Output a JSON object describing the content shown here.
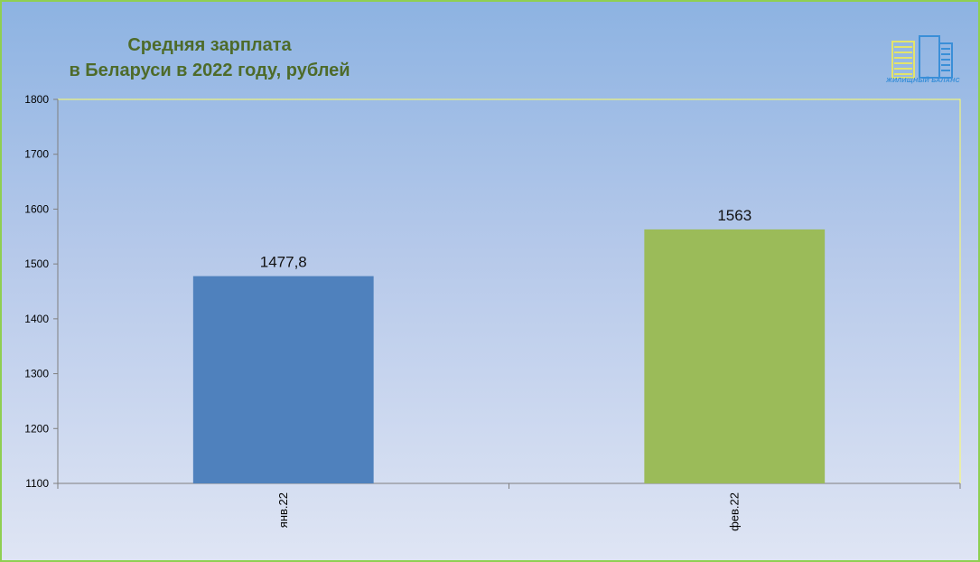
{
  "chart_data": {
    "type": "bar",
    "title_lines": [
      "Средняя зарплата",
      "в Беларуси в 2022 году, рублей"
    ],
    "categories": [
      "янв.22",
      "фев.22"
    ],
    "values": [
      1477.8,
      1563
    ],
    "data_labels": [
      "1477,8",
      "1563"
    ],
    "bar_colors": [
      "#4f81bd",
      "#9bbb59"
    ],
    "ylim": [
      1100,
      1800
    ],
    "yticks": [
      1100,
      1200,
      1300,
      1400,
      1500,
      1600,
      1700,
      1800
    ],
    "grid": false,
    "legend": "none"
  },
  "logo": {
    "caption": "ЖИЛИЩНЫЙ БАЛАНС",
    "icon": "buildings-logo-icon",
    "colors": [
      "#e3e46a",
      "#3a8fd8"
    ]
  },
  "colors": {
    "frame_border": "#8fcf52",
    "title": "#4e6b2a",
    "plot_border": "#ffff66"
  }
}
